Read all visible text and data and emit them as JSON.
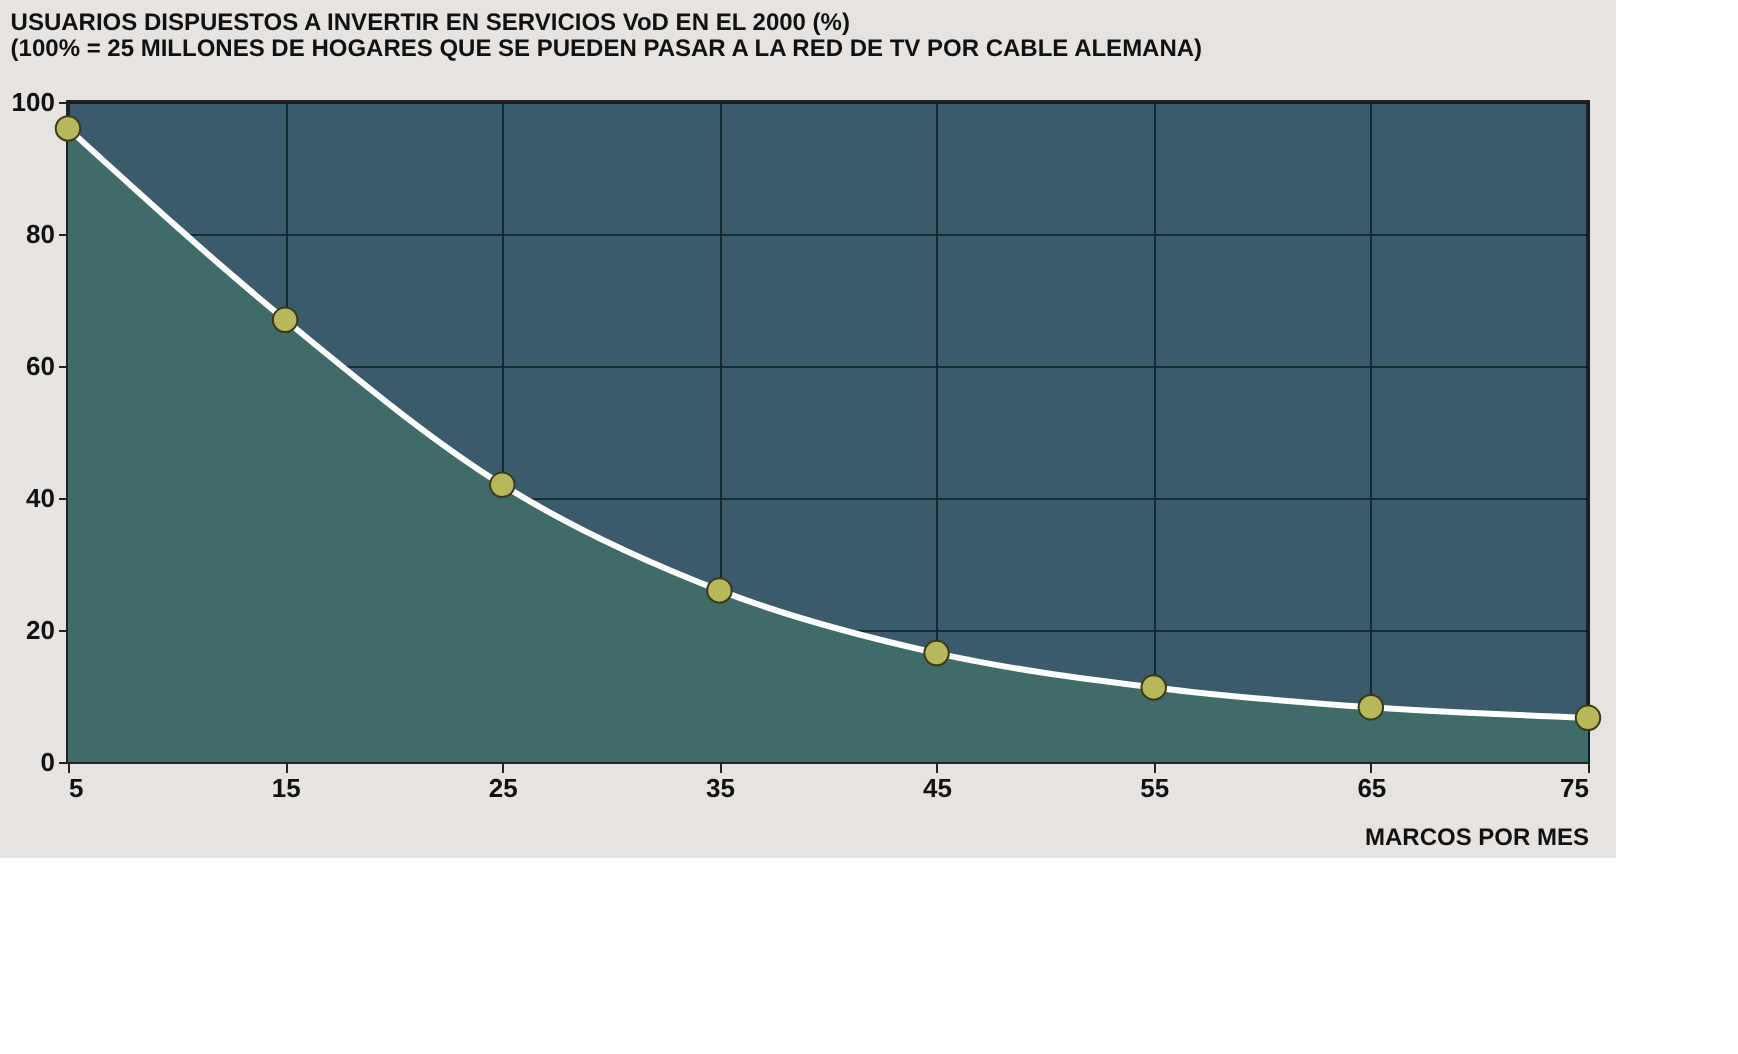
{
  "chart_data": {
    "type": "area",
    "title": "USUARIOS DISPUESTOS A INVERTIR EN SERVICIOS VoD EN EL 2000 (%)",
    "subtitle": "(100% = 25 MILLONES DE HOGARES QUE SE PUEDEN PASAR A LA RED DE TV POR CABLE ALEMANA)",
    "xlabel": "MARCOS POR MES",
    "x": [
      5,
      15,
      25,
      35,
      45,
      55,
      65,
      75
    ],
    "series": [
      {
        "color": "#3f6b68",
        "values": [
          96,
          67,
          42,
          26,
          16.5,
          11.3,
          8.3,
          6.7
        ]
      }
    ],
    "xlim": [
      5,
      75
    ],
    "xticks": [
      5,
      15,
      25,
      35,
      45,
      55,
      65,
      75
    ],
    "ylim": [
      0,
      100
    ],
    "yticks": [
      0,
      20,
      40,
      60,
      80,
      100
    ],
    "grid": true,
    "marker": "circle",
    "line_style": "solid"
  }
}
